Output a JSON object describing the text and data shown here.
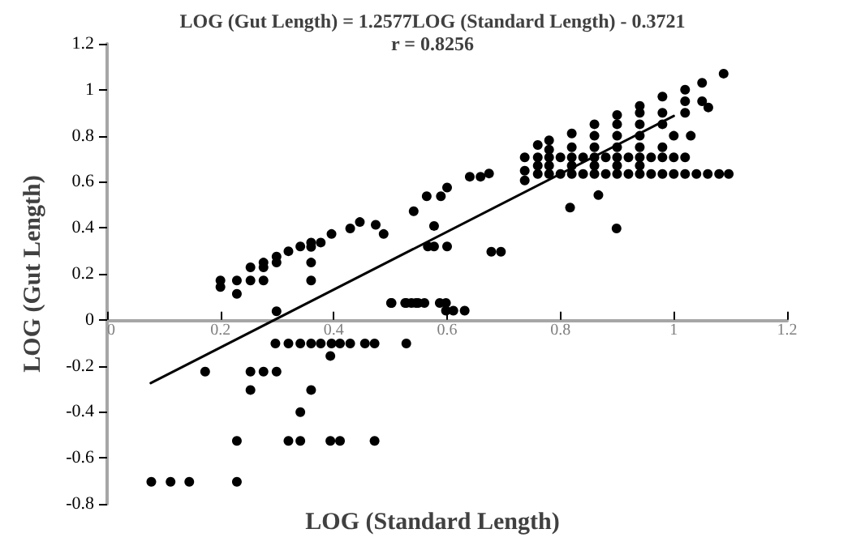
{
  "chart_data": {
    "type": "scatter",
    "title": "LOG (Gut Length) = 1.2577LOG (Standard Length) - 0.3721",
    "subtitle": "r = 0.8256",
    "xlabel": "LOG (Standard Length)",
    "ylabel": "LOG (Gut Length)",
    "xlim": [
      0,
      1.2
    ],
    "xticks": [
      0,
      0.2,
      0.4,
      0.6,
      0.8,
      1,
      1.2
    ],
    "ylim": [
      -0.8,
      1.2
    ],
    "yticks": [
      -0.8,
      -0.6,
      -0.4,
      -0.2,
      0,
      0.2,
      0.4,
      0.6,
      0.8,
      1,
      1.2
    ],
    "marker": "circle",
    "series": [
      {
        "color": "#000000",
        "x": [
          0.2,
          0.2,
          0.229,
          0.229,
          0.253,
          0.253,
          0.276,
          0.276,
          0.276,
          0.299,
          0.299,
          0.299,
          0.32,
          0.341,
          0.36,
          0.36,
          0.36,
          0.36,
          0.377,
          0.396,
          0.429,
          0.446,
          0.474,
          0.488,
          0.502,
          0.528,
          0.545,
          0.297,
          0.32,
          0.341,
          0.36,
          0.377,
          0.396,
          0.411,
          0.429,
          0.455,
          0.472,
          0.528,
          0.394,
          0.173,
          0.253,
          0.276,
          0.299,
          0.253,
          0.36,
          0.341,
          0.229,
          0.32,
          0.341,
          0.394,
          0.411,
          0.472,
          0.078,
          0.112,
          0.145,
          0.229,
          0.501,
          0.526,
          0.537,
          0.549,
          0.56,
          0.587,
          0.598,
          0.598,
          0.611,
          0.631,
          0.566,
          0.577,
          0.6,
          0.577,
          0.541,
          0.564,
          0.589,
          0.6,
          0.64,
          0.659,
          0.674,
          0.678,
          0.695,
          0.737,
          0.737,
          0.737,
          0.817,
          0.867,
          0.899,
          1.061,
          0.76,
          0.78,
          0.8,
          0.82,
          0.84,
          0.86,
          0.88,
          0.9,
          0.92,
          0.94,
          0.96,
          0.98,
          1.0,
          1.02,
          1.04,
          1.06,
          1.08,
          1.097,
          0.76,
          0.78,
          0.8,
          0.82,
          0.84,
          0.86,
          0.88,
          0.9,
          0.92,
          0.94,
          0.96,
          0.98,
          1.0,
          1.02,
          0.76,
          0.76,
          0.78,
          0.78,
          0.78,
          0.82,
          0.82,
          0.82,
          0.86,
          0.86,
          0.86,
          0.86,
          0.9,
          0.9,
          0.9,
          0.9,
          0.9,
          0.94,
          0.94,
          0.94,
          0.94,
          0.94,
          0.94,
          0.98,
          0.98,
          0.98,
          0.98,
          1.02,
          1.02,
          1.02,
          1.05,
          1.05,
          1.088,
          1.0,
          1.03
        ],
        "values": [
          0.171,
          0.143,
          0.171,
          0.113,
          0.228,
          0.171,
          0.249,
          0.228,
          0.171,
          0.275,
          0.249,
          0.037,
          0.298,
          0.319,
          0.336,
          0.317,
          0.249,
          0.171,
          0.336,
          0.373,
          0.397,
          0.425,
          0.413,
          0.373,
          0.073,
          0.073,
          0.073,
          -0.103,
          -0.103,
          -0.103,
          -0.103,
          -0.103,
          -0.103,
          -0.103,
          -0.103,
          -0.103,
          -0.103,
          -0.103,
          -0.157,
          -0.225,
          -0.225,
          -0.225,
          -0.225,
          -0.305,
          -0.305,
          -0.401,
          -0.526,
          -0.526,
          -0.526,
          -0.526,
          -0.526,
          -0.526,
          -0.704,
          -0.704,
          -0.704,
          -0.704,
          0.073,
          0.073,
          0.073,
          0.073,
          0.073,
          0.073,
          0.073,
          0.04,
          0.04,
          0.04,
          0.319,
          0.319,
          0.319,
          0.408,
          0.472,
          0.537,
          0.537,
          0.575,
          0.622,
          0.622,
          0.636,
          0.296,
          0.296,
          0.706,
          0.648,
          0.606,
          0.488,
          0.542,
          0.397,
          0.923,
          0.634,
          0.634,
          0.634,
          0.634,
          0.634,
          0.634,
          0.634,
          0.634,
          0.634,
          0.634,
          0.634,
          0.634,
          0.634,
          0.634,
          0.634,
          0.634,
          0.634,
          0.634,
          0.706,
          0.706,
          0.706,
          0.706,
          0.706,
          0.706,
          0.706,
          0.706,
          0.706,
          0.706,
          0.706,
          0.706,
          0.706,
          0.706,
          0.67,
          0.76,
          0.67,
          0.74,
          0.78,
          0.67,
          0.75,
          0.81,
          0.67,
          0.75,
          0.8,
          0.85,
          0.67,
          0.75,
          0.8,
          0.85,
          0.89,
          0.67,
          0.75,
          0.8,
          0.85,
          0.9,
          0.93,
          0.75,
          0.85,
          0.9,
          0.97,
          0.9,
          0.95,
          1.0,
          0.95,
          1.03,
          1.07,
          0.8,
          0.8
        ]
      },
      {
        "type": "line",
        "color": "#000000",
        "marker": "none",
        "line_style": "solid",
        "x": [
          0.077,
          1.0
        ],
        "values": [
          -0.275,
          0.886
        ]
      }
    ]
  }
}
